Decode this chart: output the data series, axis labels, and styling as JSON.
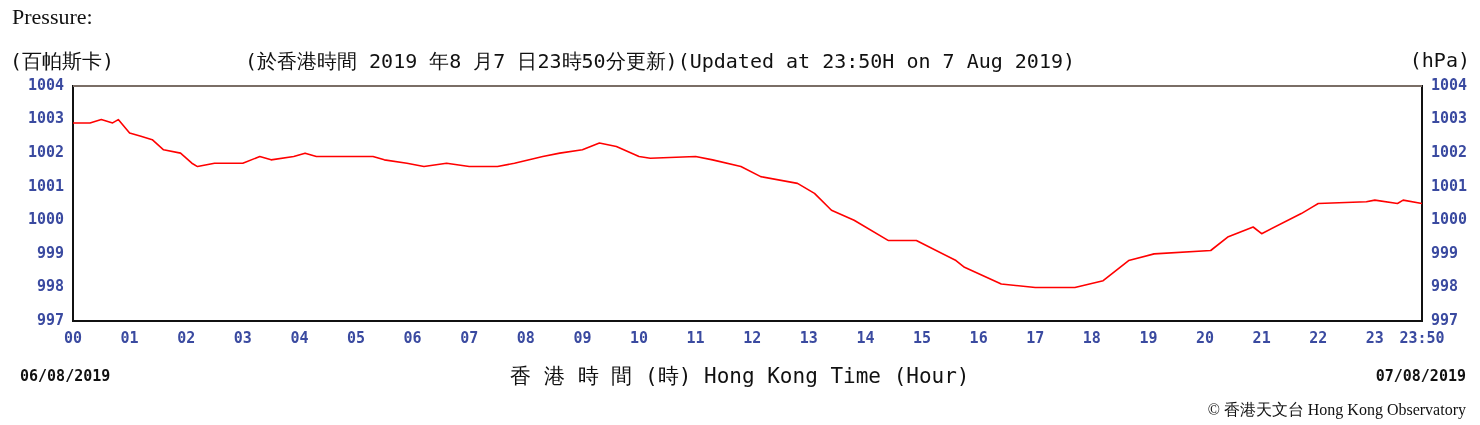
{
  "chart_data": {
    "type": "line",
    "title": "Pressure:",
    "subtitle": "(於香港時間 2019 年8 月7 日23時50分更新)(Updated at 23:50H on 7 Aug 2019)",
    "ylabel": "(百帕斯卡)",
    "y2label": "(hPa)",
    "xlabel": "香 港 時 間 (時) Hong Kong Time (Hour)",
    "annotations": [
      "06/08/2019",
      "07/08/2019",
      "© 香港天文台 Hong Kong Observatory"
    ],
    "xlim": [
      0,
      23.833
    ],
    "xticks": [
      {
        "value": 0,
        "label": "00"
      },
      {
        "value": 1,
        "label": "01"
      },
      {
        "value": 2,
        "label": "02"
      },
      {
        "value": 3,
        "label": "03"
      },
      {
        "value": 4,
        "label": "04"
      },
      {
        "value": 5,
        "label": "05"
      },
      {
        "value": 6,
        "label": "06"
      },
      {
        "value": 7,
        "label": "07"
      },
      {
        "value": 8,
        "label": "08"
      },
      {
        "value": 9,
        "label": "09"
      },
      10,
      11,
      12,
      13,
      14,
      15,
      16,
      17,
      18,
      19,
      20,
      21,
      22,
      23,
      {
        "value": 23.833,
        "label": "23:50"
      }
    ],
    "ylim": [
      997,
      1004
    ],
    "yticks": [
      997,
      998,
      999,
      1000,
      1001,
      1002,
      1003,
      1004
    ],
    "y2lim": [
      997,
      1004
    ],
    "y2ticks": [
      997,
      998,
      999,
      1000,
      1001,
      1002,
      1003,
      1004
    ],
    "grid": false,
    "legend": false,
    "marker": "none",
    "line_style": "solid",
    "series": [
      {
        "color": "#ff0000",
        "x": [
          0,
          0.3,
          0.5,
          0.7,
          0.8,
          1.0,
          1.2,
          1.4,
          1.6,
          1.9,
          2.1,
          2.2,
          2.5,
          3.0,
          3.3,
          3.5,
          3.9,
          4.1,
          4.3,
          5.3,
          5.5,
          5.9,
          6.2,
          6.6,
          7.0,
          7.5,
          7.8,
          8.3,
          8.6,
          9.0,
          9.3,
          9.6,
          10.0,
          10.2,
          11.0,
          11.3,
          11.8,
          12.15,
          12.8,
          13.1,
          13.4,
          13.8,
          14.4,
          14.9,
          15.6,
          15.75,
          16.4,
          17.0,
          17.7,
          18.2,
          18.65,
          19.1,
          20.1,
          20.4,
          20.85,
          21.0,
          21.7,
          21.9,
          22.0,
          22.85,
          23.0,
          23.4,
          23.5,
          23.833
        ],
        "values": [
          1002.9,
          1002.9,
          1003.0,
          1002.9,
          1003.0,
          1002.6,
          1002.5,
          1002.4,
          1002.1,
          1002.0,
          1001.7,
          1001.6,
          1001.7,
          1001.7,
          1001.9,
          1001.8,
          1001.9,
          1002.0,
          1001.9,
          1001.9,
          1001.8,
          1001.7,
          1001.6,
          1001.7,
          1001.6,
          1001.6,
          1001.7,
          1001.9,
          1002.0,
          1002.1,
          1002.3,
          1002.2,
          1001.9,
          1001.85,
          1001.9,
          1001.8,
          1001.6,
          1001.3,
          1001.1,
          1000.8,
          1000.3,
          1000.0,
          999.4,
          999.4,
          998.8,
          998.6,
          998.1,
          998.0,
          998.0,
          998.2,
          998.8,
          999.0,
          999.1,
          999.5,
          999.8,
          999.6,
          1000.2,
          1000.4,
          1000.5,
          1000.55,
          1000.6,
          1000.5,
          1000.6,
          1000.5
        ]
      }
    ]
  }
}
